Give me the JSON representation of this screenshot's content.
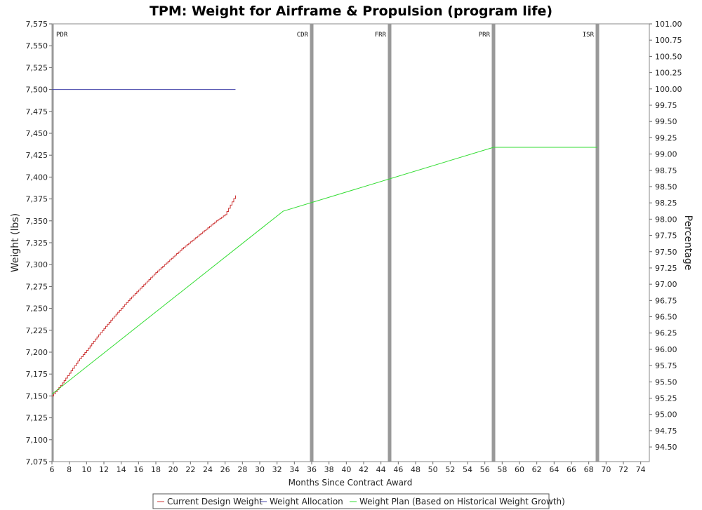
{
  "chart_data": {
    "type": "line",
    "title": "TPM: Weight for Airframe & Propulsion (program life)",
    "xlabel": "Months Since Contract Award",
    "ylabel": "Weight (lbs)",
    "y2label": "Percentage",
    "xlim": [
      6,
      75
    ],
    "ylim": [
      7075,
      7575
    ],
    "y2lim": [
      94.275,
      101.0
    ],
    "x_ticks": [
      6,
      8,
      10,
      12,
      14,
      16,
      18,
      20,
      22,
      24,
      26,
      28,
      30,
      32,
      34,
      36,
      38,
      40,
      42,
      44,
      46,
      48,
      50,
      52,
      54,
      56,
      58,
      60,
      62,
      64,
      66,
      68,
      70,
      72,
      74
    ],
    "y_ticks": [
      7075,
      7100,
      7125,
      7150,
      7175,
      7200,
      7225,
      7250,
      7275,
      7300,
      7325,
      7350,
      7375,
      7400,
      7425,
      7450,
      7475,
      7500,
      7525,
      7550,
      7575
    ],
    "y2_ticks": [
      94.5,
      94.75,
      95.0,
      95.25,
      95.5,
      95.75,
      96.0,
      96.25,
      96.5,
      96.75,
      97.0,
      97.25,
      97.5,
      97.75,
      98.0,
      98.25,
      98.5,
      98.75,
      99.0,
      99.25,
      99.5,
      99.75,
      100.0,
      100.25,
      100.5,
      100.75,
      101.0
    ],
    "y_tick_labels": [
      "7,075",
      "7,100",
      "7,125",
      "7,150",
      "7,175",
      "7,200",
      "7,225",
      "7,250",
      "7,275",
      "7,300",
      "7,325",
      "7,350",
      "7,375",
      "7,400",
      "7,425",
      "7,450",
      "7,475",
      "7,500",
      "7,525",
      "7,550",
      "7,575"
    ],
    "y2_tick_labels": [
      "94.50",
      "94.75",
      "95.00",
      "95.25",
      "95.50",
      "95.75",
      "96.00",
      "96.25",
      "96.50",
      "96.75",
      "97.00",
      "97.25",
      "97.50",
      "97.75",
      "98.00",
      "98.25",
      "98.50",
      "98.75",
      "99.00",
      "99.25",
      "99.50",
      "99.75",
      "100.00",
      "100.25",
      "100.50",
      "100.75",
      "101.00"
    ],
    "milestones": [
      {
        "label": "PDR",
        "x": 6
      },
      {
        "label": "CDR",
        "x": 36
      },
      {
        "label": "FRR",
        "x": 45
      },
      {
        "label": "PRR",
        "x": 57
      },
      {
        "label": "ISR",
        "x": 69
      }
    ],
    "series": [
      {
        "name": "Current Design Weight",
        "color": "#cc3333",
        "step": true,
        "x": [
          6,
          7,
          8,
          9,
          10,
          11,
          12,
          13,
          14,
          15,
          16,
          17,
          18,
          19,
          20,
          21,
          22,
          23,
          24,
          25,
          26,
          27.2
        ],
        "y": [
          7150,
          7162,
          7176,
          7190,
          7202,
          7215,
          7227,
          7239,
          7250,
          7261,
          7271,
          7281,
          7291,
          7300,
          7309,
          7318,
          7326,
          7334,
          7342,
          7350,
          7357,
          7379
        ]
      },
      {
        "name": "Weight Allocation",
        "color": "#4444aa",
        "step": false,
        "x": [
          6,
          27.2
        ],
        "y": [
          7500,
          7500
        ]
      },
      {
        "name": "Weight Plan (Based on Historical Weight Growth)",
        "color": "#33dd33",
        "step": false,
        "x": [
          6,
          32.7,
          57,
          69
        ],
        "y": [
          7152,
          7361,
          7434,
          7434
        ]
      }
    ],
    "grid": false,
    "legend_position": "bottom"
  }
}
